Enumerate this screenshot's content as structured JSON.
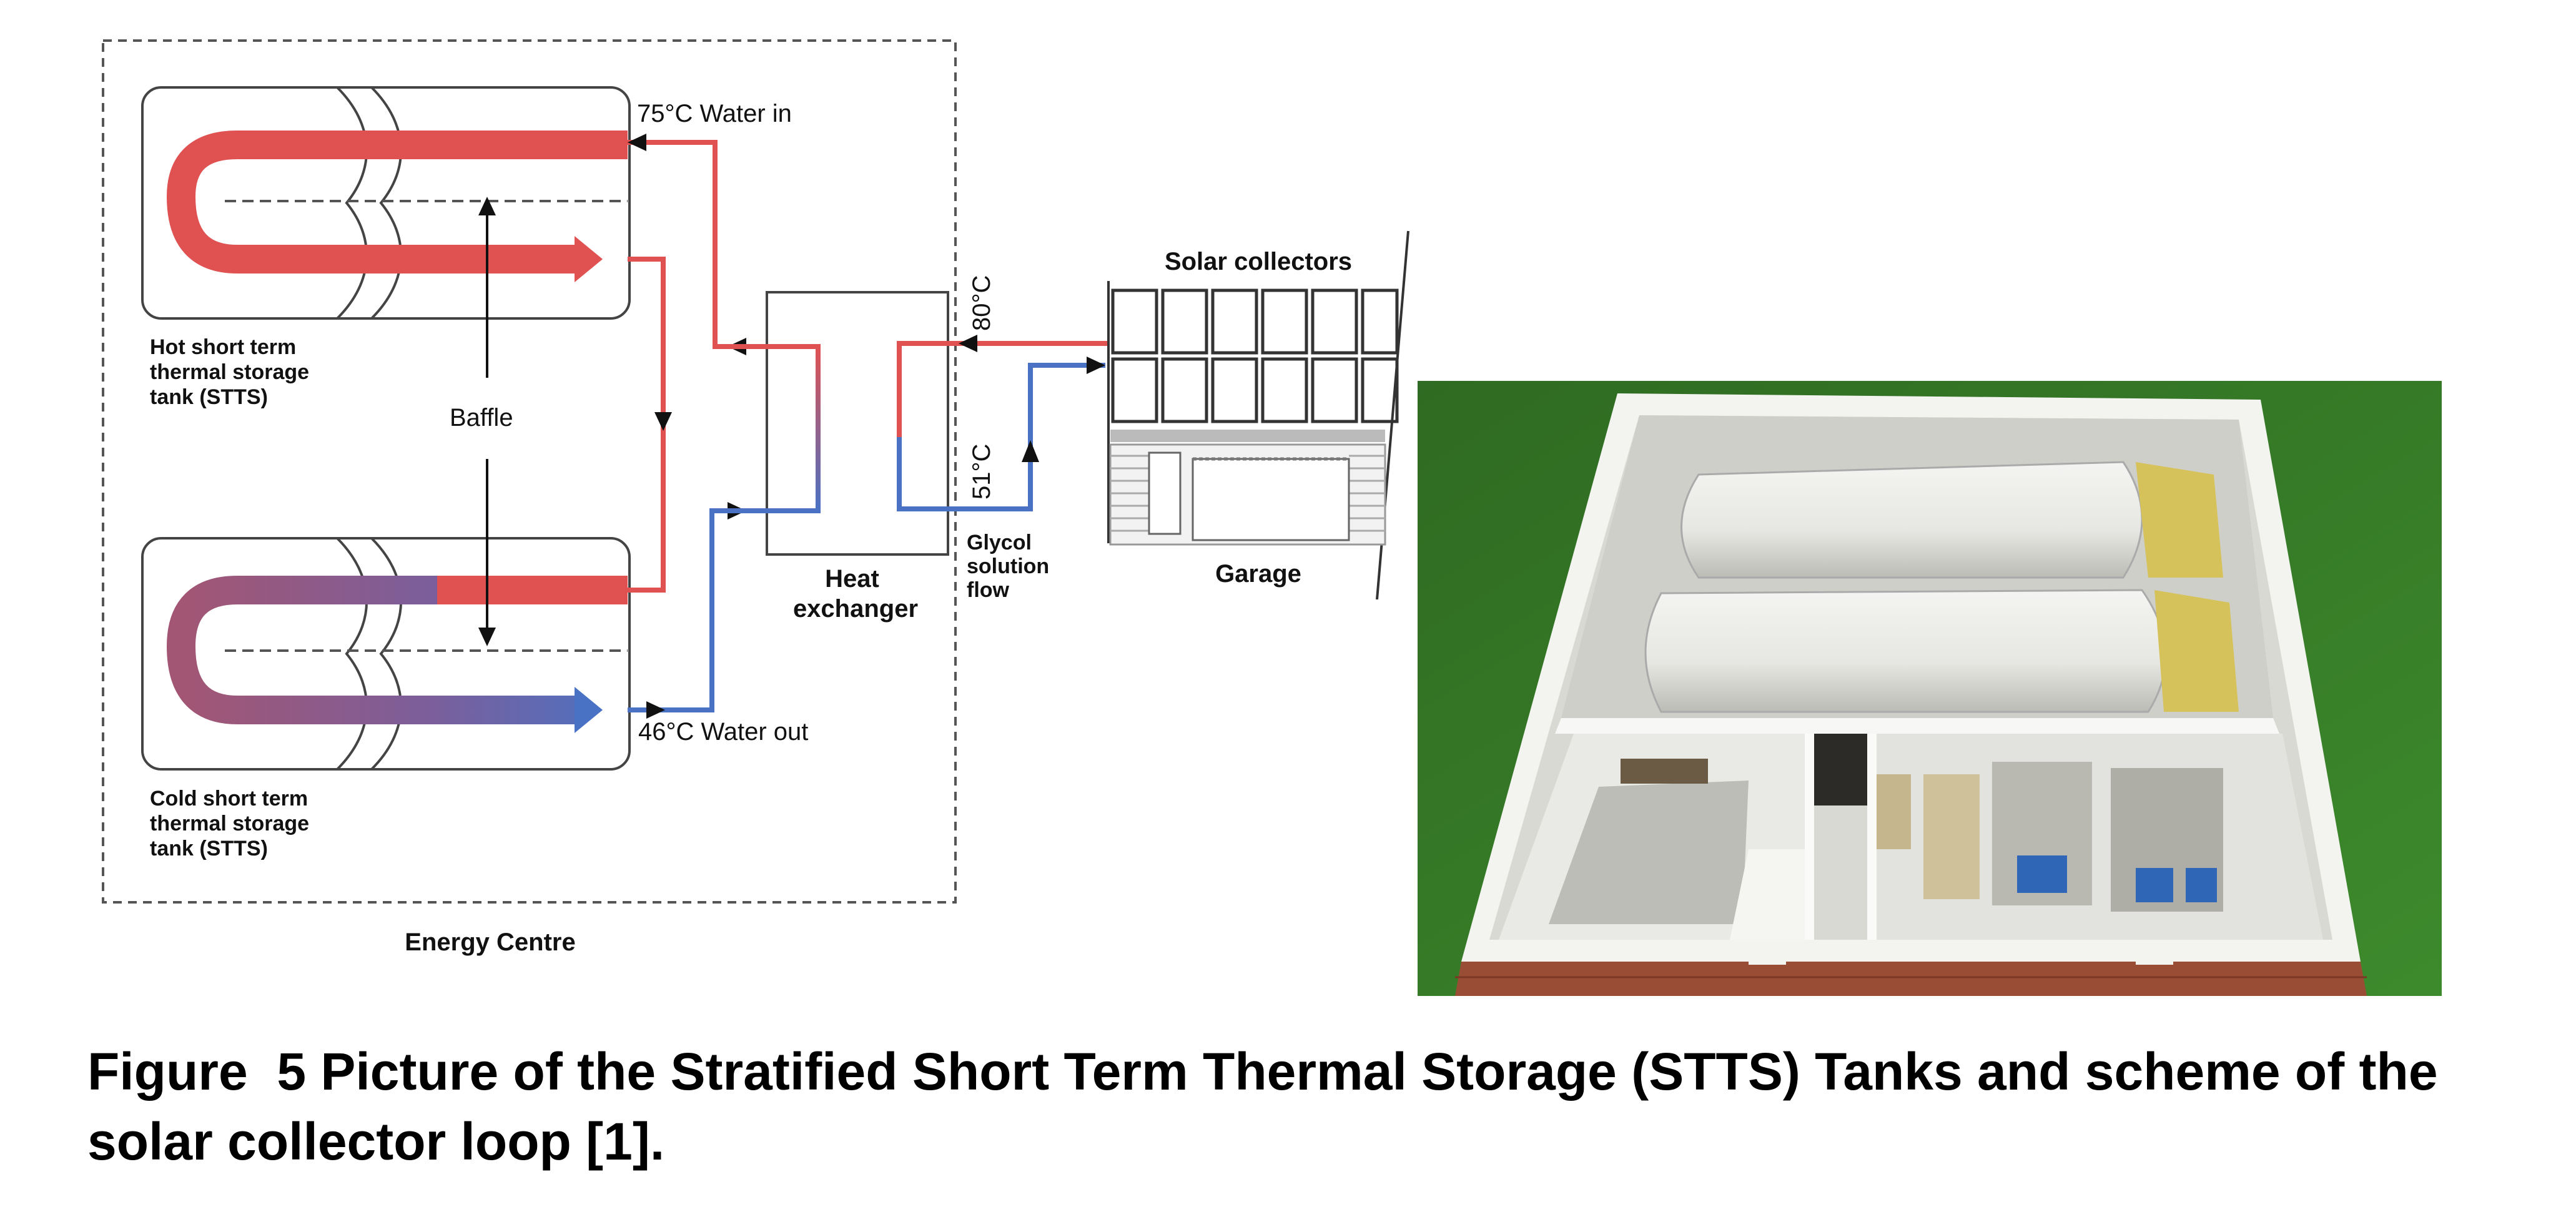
{
  "diagram": {
    "labels": {
      "water_in": "75°C Water in",
      "water_out": "46°C Water out",
      "hot_tank": [
        "Hot short term",
        "thermal storage",
        "tank (STTS)"
      ],
      "cold_tank": [
        "Cold short term",
        "thermal storage",
        "tank (STTS)"
      ],
      "baffle": "Baffle",
      "heat_exchanger": [
        "Heat",
        "exchanger"
      ],
      "glycol": [
        "Glycol",
        "solution",
        "flow"
      ],
      "temp_80": "80°C",
      "temp_51": "51°C",
      "solar_collectors": "Solar collectors",
      "garage": "Garage",
      "energy_centre": "Energy Centre"
    },
    "colors": {
      "hot_flow": "#e05252",
      "cold_flow": "#4a72c4",
      "mixed_flow": "#9b5a7a",
      "boundary": "#555555"
    }
  },
  "photo": {
    "description_icon": "stts-tank-room-render"
  },
  "caption": {
    "text": "Figure  5 Picture of the Stratified Short Term Thermal Storage (STTS) Tanks and scheme of the solar collector loop [1]."
  }
}
